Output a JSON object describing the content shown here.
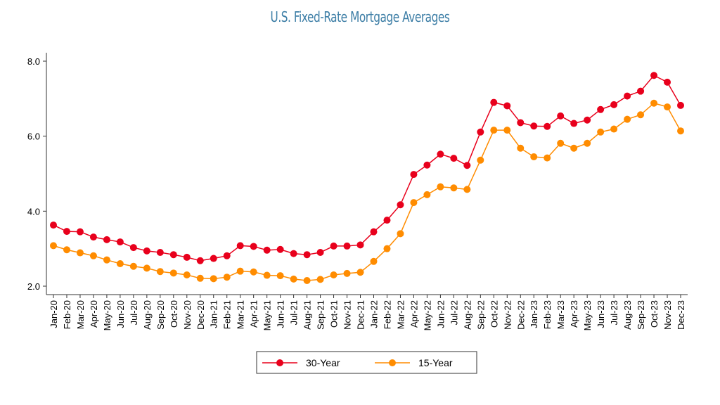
{
  "chart_data": {
    "type": "line",
    "title": "U.S. Fixed-Rate Mortgage Averages",
    "xlabel": "",
    "ylabel": "",
    "ylim": [
      2.0,
      8.0
    ],
    "yticks": [
      "2.0",
      "4.0",
      "6.0",
      "8.0"
    ],
    "grid": false,
    "legend": "bottom",
    "categories": [
      "Jan-20",
      "Feb-20",
      "Mar-20",
      "Apr-20",
      "May-20",
      "Jun-20",
      "Jul-20",
      "Aug-20",
      "Sep-20",
      "Oct-20",
      "Nov-20",
      "Dec-20",
      "Jan-21",
      "Feb-21",
      "Mar-21",
      "Apr-21",
      "May-21",
      "Jun-21",
      "Jul-21",
      "Aug-21",
      "Sep-21",
      "Oct-21",
      "Nov-21",
      "Dec-21",
      "Jan-22",
      "Feb-22",
      "Mar-22",
      "Apr-22",
      "May-22",
      "Jun-22",
      "Jul-22",
      "Aug-22",
      "Sep-22",
      "Oct-22",
      "Nov-22",
      "Dec-22",
      "Jan-23",
      "Feb-23",
      "Mar-23",
      "Apr-23",
      "May-23",
      "Jun-23",
      "Jul-23",
      "Aug-23",
      "Sep-23",
      "Oct-23",
      "Nov-23",
      "Dec-23"
    ],
    "series": [
      {
        "name": "30-Year",
        "color": "#e8001c",
        "values": [
          3.63,
          3.46,
          3.45,
          3.31,
          3.24,
          3.18,
          3.03,
          2.94,
          2.9,
          2.84,
          2.77,
          2.68,
          2.74,
          2.81,
          3.08,
          3.06,
          2.96,
          2.98,
          2.87,
          2.84,
          2.9,
          3.07,
          3.07,
          3.1,
          3.45,
          3.76,
          4.17,
          4.98,
          5.23,
          5.52,
          5.41,
          5.22,
          6.11,
          6.9,
          6.81,
          6.36,
          6.27,
          6.26,
          6.54,
          6.34,
          6.43,
          6.71,
          6.84,
          7.07,
          7.2,
          7.62,
          7.44,
          6.82
        ]
      },
      {
        "name": "15-Year",
        "color": "#ff8c00",
        "values": [
          3.08,
          2.97,
          2.89,
          2.81,
          2.7,
          2.6,
          2.53,
          2.48,
          2.39,
          2.35,
          2.3,
          2.21,
          2.2,
          2.24,
          2.4,
          2.38,
          2.29,
          2.28,
          2.19,
          2.15,
          2.18,
          2.3,
          2.34,
          2.37,
          2.66,
          3.0,
          3.4,
          4.23,
          4.44,
          4.65,
          4.62,
          4.58,
          5.36,
          6.16,
          6.16,
          5.68,
          5.45,
          5.42,
          5.81,
          5.68,
          5.81,
          6.11,
          6.19,
          6.45,
          6.57,
          6.88,
          6.78,
          6.14
        ]
      }
    ]
  }
}
